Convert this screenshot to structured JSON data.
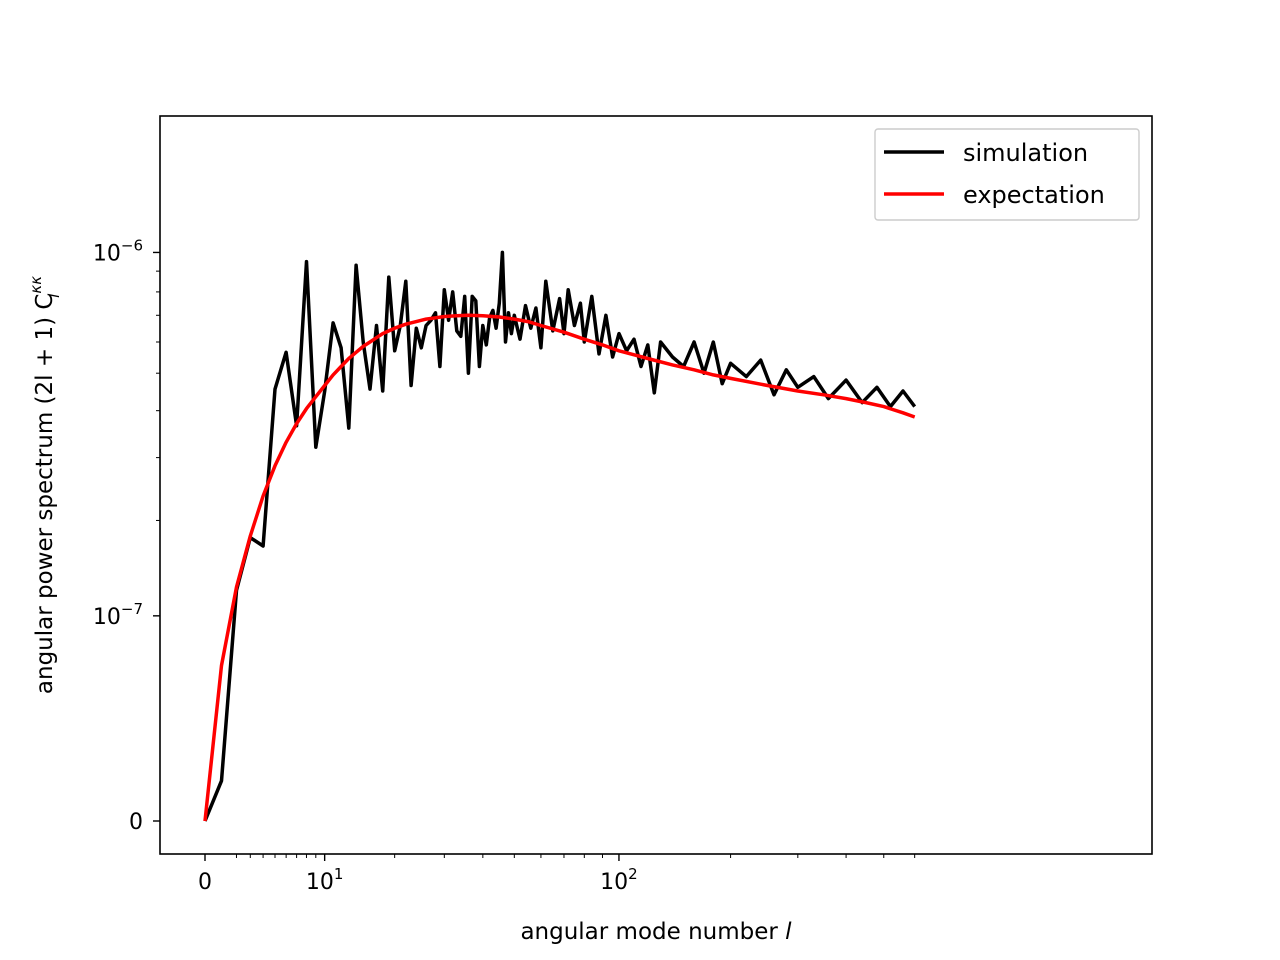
{
  "chart_data": {
    "type": "line",
    "title": "",
    "xlabel": "angular mode number ",
    "xlabel_var": "l",
    "ylabel": "angular power spectrum (2l + 1) C",
    "ylabel_sup": "κκ",
    "ylabel_sub": "l",
    "xscale": "symlog",
    "yscale": "symlog",
    "xlim": [
      -1,
      620
    ],
    "ylim": [
      -1.5e-08,
      1.08e-06
    ],
    "x_ticks": [
      {
        "value": 0,
        "base": "0",
        "exp": ""
      },
      {
        "value": 10,
        "base": "10",
        "exp": "1"
      },
      {
        "value": 100,
        "base": "10",
        "exp": "2"
      }
    ],
    "y_ticks": [
      {
        "value": 0,
        "base": "0",
        "exp": ""
      },
      {
        "value": 1e-07,
        "base": "10",
        "exp": "−7"
      },
      {
        "value": 1e-06,
        "base": "10",
        "exp": "−6"
      }
    ],
    "legend": {
      "position": "top-right"
    },
    "series": [
      {
        "name": "simulation",
        "color": "#000000",
        "x": [
          0,
          1,
          2,
          3,
          4,
          5,
          6,
          7,
          8,
          9,
          10,
          11,
          12,
          13,
          14,
          15,
          16,
          17,
          18,
          19,
          20,
          21,
          22,
          23,
          24,
          25,
          26,
          27,
          28,
          29,
          30,
          31,
          32,
          33,
          34,
          35,
          36,
          37,
          38,
          39,
          40,
          41,
          42,
          43,
          44,
          45,
          46,
          47,
          48,
          49,
          50,
          52,
          54,
          56,
          58,
          60,
          62,
          65,
          68,
          70,
          72,
          75,
          78,
          80,
          84,
          88,
          92,
          96,
          100,
          105,
          110,
          115,
          120,
          125,
          130,
          140,
          150,
          160,
          170,
          180,
          190,
          200,
          220,
          240,
          260,
          280,
          300,
          330,
          360,
          400,
          440,
          480,
          520,
          560,
          600
        ],
        "y": [
          0,
          1.2e-08,
          1.22e-07,
          1.78e-07,
          1.68e-07,
          4.55e-07,
          5.65e-07,
          3.65e-07,
          9.5e-07,
          3.2e-07,
          4.5e-07,
          6.7e-07,
          5.8e-07,
          3.6e-07,
          9.3e-07,
          6e-07,
          4.55e-07,
          6.6e-07,
          4.5e-07,
          8.7e-07,
          5.7e-07,
          6.6e-07,
          8.5e-07,
          4.65e-07,
          6.5e-07,
          5.8e-07,
          6.6e-07,
          6.8e-07,
          7.1e-07,
          5.2e-07,
          8.1e-07,
          6.8e-07,
          8e-07,
          6.4e-07,
          6.2e-07,
          7.8e-07,
          5e-07,
          7.8e-07,
          7.6e-07,
          5.2e-07,
          6.6e-07,
          5.9e-07,
          6.9e-07,
          7.2e-07,
          6.5e-07,
          7.5e-07,
          1e-06,
          6e-07,
          7.1e-07,
          6.3e-07,
          7e-07,
          6.1e-07,
          7.4e-07,
          6.5e-07,
          7.3e-07,
          5.8e-07,
          8.5e-07,
          6.4e-07,
          7.7e-07,
          6.3e-07,
          8.1e-07,
          6.6e-07,
          7.5e-07,
          6e-07,
          7.8e-07,
          5.6e-07,
          7e-07,
          5.5e-07,
          6.3e-07,
          5.7e-07,
          6.1e-07,
          5.2e-07,
          5.9e-07,
          4.45e-07,
          6e-07,
          5.5e-07,
          5.2e-07,
          6e-07,
          5e-07,
          6e-07,
          4.7e-07,
          5.3e-07,
          4.9e-07,
          5.4e-07,
          4.4e-07,
          5.1e-07,
          4.6e-07,
          4.9e-07,
          4.3e-07,
          4.8e-07,
          4.2e-07,
          4.6e-07,
          4.1e-07,
          4.5e-07,
          4.1e-07
        ]
      },
      {
        "name": "expectation",
        "color": "#ff0000",
        "x": [
          0,
          1,
          2,
          3,
          4,
          5,
          6,
          7,
          8,
          9,
          10,
          11,
          12,
          13,
          14,
          15,
          16,
          17,
          18,
          19,
          20,
          22,
          24,
          26,
          28,
          30,
          33,
          36,
          40,
          45,
          50,
          55,
          60,
          70,
          80,
          90,
          100,
          120,
          140,
          160,
          180,
          200,
          250,
          300,
          350,
          400,
          450,
          500,
          560,
          600
        ],
        "y": [
          0,
          6.5e-08,
          1.25e-07,
          1.8e-07,
          2.35e-07,
          2.85e-07,
          3.3e-07,
          3.7e-07,
          4.05e-07,
          4.35e-07,
          4.65e-07,
          4.95e-07,
          5.2e-07,
          5.45e-07,
          5.65e-07,
          5.85e-07,
          6e-07,
          6.15e-07,
          6.3e-07,
          6.4e-07,
          6.5e-07,
          6.65e-07,
          6.75e-07,
          6.85e-07,
          6.9e-07,
          6.95e-07,
          6.98e-07,
          7e-07,
          6.98e-07,
          6.93e-07,
          6.85e-07,
          6.75e-07,
          6.6e-07,
          6.35e-07,
          6.1e-07,
          5.9e-07,
          5.7e-07,
          5.45e-07,
          5.25e-07,
          5.1e-07,
          4.95e-07,
          4.85e-07,
          4.65e-07,
          4.5e-07,
          4.4e-07,
          4.3e-07,
          4.2e-07,
          4.1e-07,
          3.95e-07,
          3.85e-07
        ]
      }
    ]
  }
}
